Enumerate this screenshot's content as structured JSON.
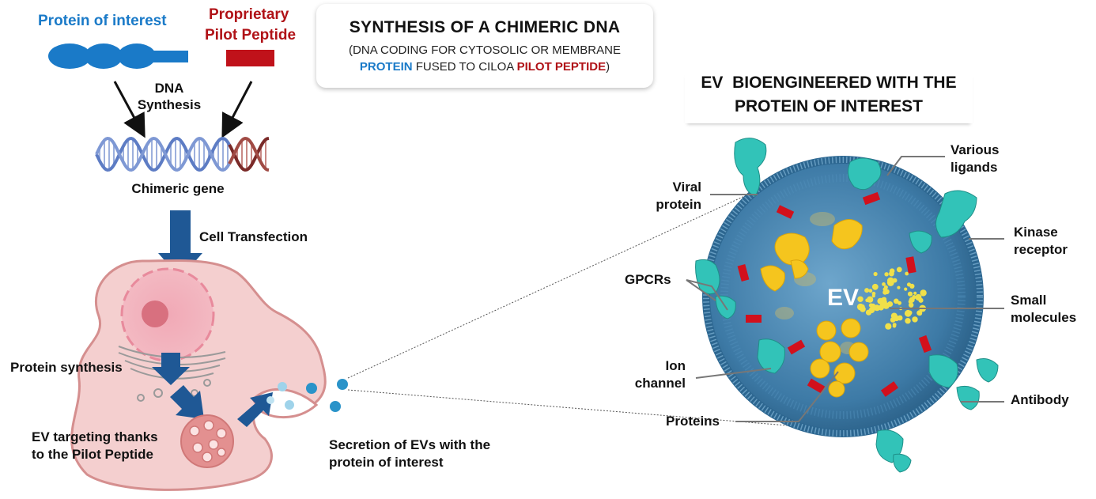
{
  "protein_label": "Protein of interest",
  "pilot_label": [
    "Proprietary",
    "Pilot Peptide"
  ],
  "dna_synthesis": [
    "DNA",
    "Synthesis"
  ],
  "chimeric_gene": "Chimeric gene",
  "cell_transfection": "Cell Transfection",
  "protein_synthesis": "Protein synthesis",
  "ev_targeting": [
    "EV targeting thanks",
    "to the Pilot Peptide"
  ],
  "secretion": [
    "Secretion of EVs with the",
    "protein of interest"
  ],
  "title_box": {
    "main": "SYNTHESIS OF A CHIMERIC DNA",
    "line1": "(DNA CODING FOR CYTOSOLIC OR MEMBRANE",
    "protein_word": "PROTEIN",
    "fused_text": " FUSED TO CILOA ",
    "pilot_word": "PILOT PEPTIDE",
    "close": ")"
  },
  "ev_title": [
    "EV  BIOENGINEERED WITH THE",
    "PROTEIN OF INTEREST"
  ],
  "ev_center": "EV",
  "ev_labels": {
    "viral": [
      "Viral",
      "protein"
    ],
    "ligands": [
      "Various",
      "ligands"
    ],
    "kinase": [
      "Kinase",
      "receptor"
    ],
    "gpcrs": "GPCRs",
    "small": [
      "Small",
      "molecules"
    ],
    "ion": [
      "Ion",
      "channel"
    ],
    "antibody": "Antibody",
    "proteins": "Proteins"
  },
  "colors": {
    "protein_blue": "#1a7ac8",
    "pilot_red": "#c0121a",
    "arrow_blue": "#1f5895",
    "cell_pink": "#f4cfcf",
    "ev_blue": "#3d7aa6",
    "teal": "#32c3b8",
    "gold": "#f5c51e"
  }
}
